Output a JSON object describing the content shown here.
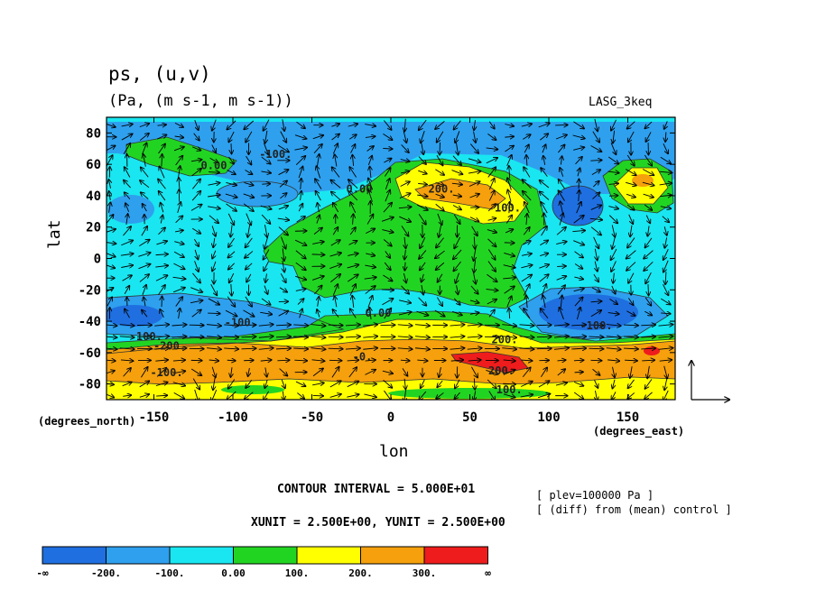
{
  "header": {
    "title": "ps, (u,v)",
    "subtitle": "(Pa, (m s-1, m s-1))",
    "model": "LASG_3keq"
  },
  "axes": {
    "xlabel": "lon",
    "ylabel": "lat",
    "x_unit": "(degrees_east)",
    "y_unit": "(degrees_north)"
  },
  "info": {
    "contour_interval": "CONTOUR INTERVAL = 5.000E+01",
    "vector_units": "XUNIT = 2.500E+00, YUNIT = 2.500E+00",
    "plev": "[ plev=100000 Pa ]",
    "diff": "[ (diff) from (mean) control ]"
  },
  "chart_data": {
    "type": "heatmap",
    "title": "ps, (u,v)",
    "subtitle": "(Pa, (m s-1, m s-1))",
    "xlabel": "lon",
    "ylabel": "lat",
    "xlim": [
      -180,
      180
    ],
    "ylim": [
      -90,
      90
    ],
    "x_ticks": [
      -150,
      -100,
      -50,
      0,
      50,
      100,
      150
    ],
    "y_ticks": [
      80,
      60,
      40,
      20,
      0,
      -20,
      -40,
      -60,
      -80
    ],
    "colorbar": {
      "levels": [
        "-∞",
        "-200.",
        "-100.",
        "0.00",
        "100.",
        "200.",
        "300.",
        "∞"
      ],
      "colors": [
        "#1f6fe0",
        "#2ea0ee",
        "#19e6f0",
        "#22d422",
        "#ffff00",
        "#f5a00c",
        "#ee1c1c"
      ]
    },
    "contour_labels": [
      {
        "text": "0.00",
        "lon": -112,
        "lat": 57
      },
      {
        "text": "-100.",
        "lon": -73,
        "lat": 64
      },
      {
        "text": "0.00",
        "lon": -20,
        "lat": 42
      },
      {
        "text": "200.",
        "lon": 32,
        "lat": 42
      },
      {
        "text": "100.",
        "lon": 74,
        "lat": 30
      },
      {
        "text": "0.00",
        "lon": -8,
        "lat": -37
      },
      {
        "text": "-100.",
        "lon": -95,
        "lat": -43
      },
      {
        "text": "-100.",
        "lon": -155,
        "lat": -52
      },
      {
        "text": "-200.",
        "lon": -140,
        "lat": -58
      },
      {
        "text": "-100.",
        "lon": -142,
        "lat": -75
      },
      {
        "text": "200.",
        "lon": 72,
        "lat": -54
      },
      {
        "text": "200.",
        "lon": 70,
        "lat": -74
      },
      {
        "text": "100.",
        "lon": 75,
        "lat": -86
      },
      {
        "text": "-100.",
        "lon": 130,
        "lat": -45
      },
      {
        "text": "-0.",
        "lon": -18,
        "lat": -65
      }
    ]
  }
}
